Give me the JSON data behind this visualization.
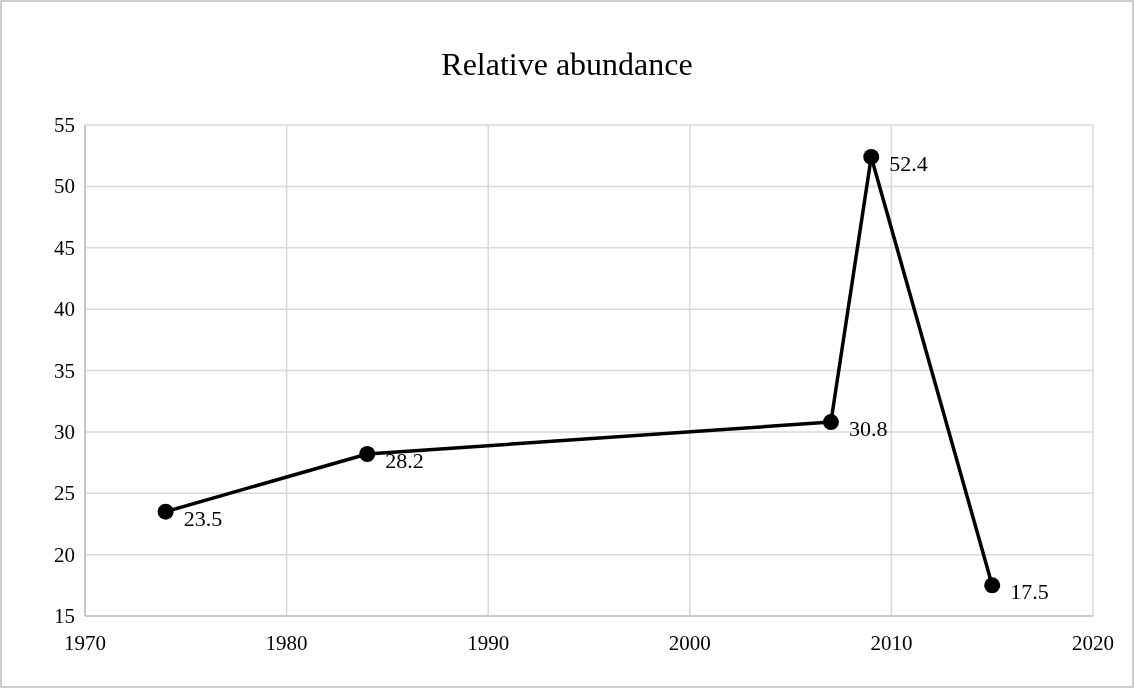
{
  "chart_data": {
    "type": "line",
    "title": "Relative abundance",
    "x": [
      1974,
      1984,
      2007,
      2009,
      2015
    ],
    "series": [
      {
        "color": "#000000",
        "values": [
          23.5,
          28.2,
          30.8,
          52.4,
          17.5
        ]
      }
    ],
    "xlim": [
      1970,
      2020
    ],
    "xticks": [
      1970,
      1980,
      1990,
      2000,
      2010,
      2020
    ],
    "ylim": [
      15,
      55
    ],
    "yticks": [
      15,
      20,
      25,
      30,
      35,
      40,
      45,
      50,
      55
    ],
    "grid": true,
    "marker": "circle",
    "line_style": "solid",
    "data_labels": true
  }
}
